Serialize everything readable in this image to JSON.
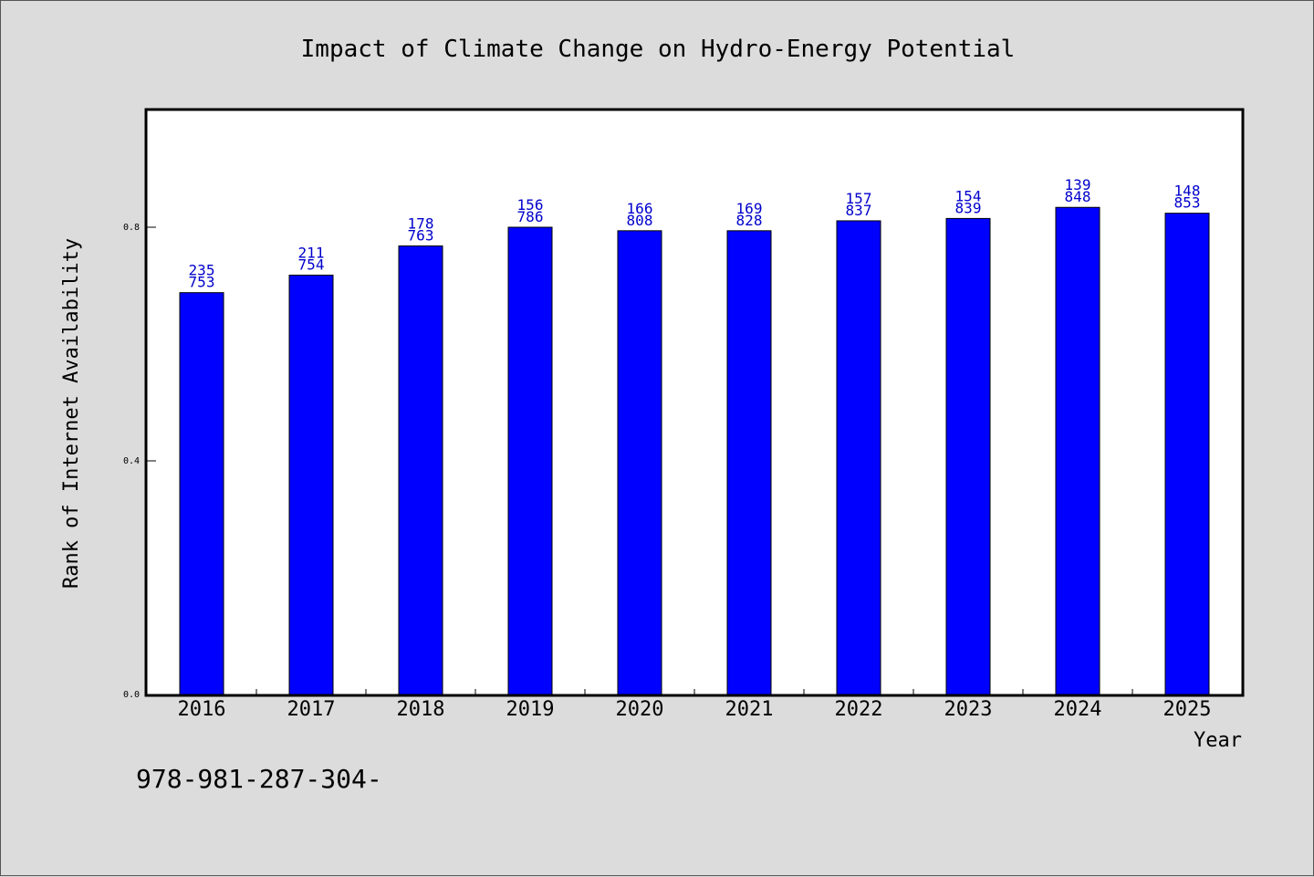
{
  "chart_data": {
    "type": "bar",
    "title": "Impact of Climate Change on Hydro-Energy Potential",
    "xlabel": "Year",
    "ylabel": "Rank of Internet Availability",
    "categories": [
      "2016",
      "2017",
      "2018",
      "2019",
      "2020",
      "2021",
      "2022",
      "2023",
      "2024",
      "2025"
    ],
    "values": [
      0.688,
      0.718,
      0.768,
      0.8,
      0.794,
      0.794,
      0.811,
      0.815,
      0.834,
      0.824
    ],
    "data_labels": [
      [
        "235",
        "753"
      ],
      [
        "211",
        "754"
      ],
      [
        "178",
        "763"
      ],
      [
        "156",
        "786"
      ],
      [
        "166",
        "808"
      ],
      [
        "169",
        "828"
      ],
      [
        "157",
        "837"
      ],
      [
        "154",
        "839"
      ],
      [
        "139",
        "848"
      ],
      [
        "148",
        "853"
      ]
    ],
    "ylim": [
      0,
      1.0
    ],
    "yticks": [
      0.0,
      0.4,
      0.8
    ],
    "ytick_labels": [
      "0.0",
      "0.4",
      "0.8"
    ],
    "bar_color": "#0000ff",
    "label_color": "#0000cc",
    "grid": false,
    "legend": "none"
  },
  "footer_text": "978-981-287-304-",
  "colors": {
    "background": "#dcdcdc",
    "plot_background": "#ffffff",
    "bar": "#0000ff"
  }
}
